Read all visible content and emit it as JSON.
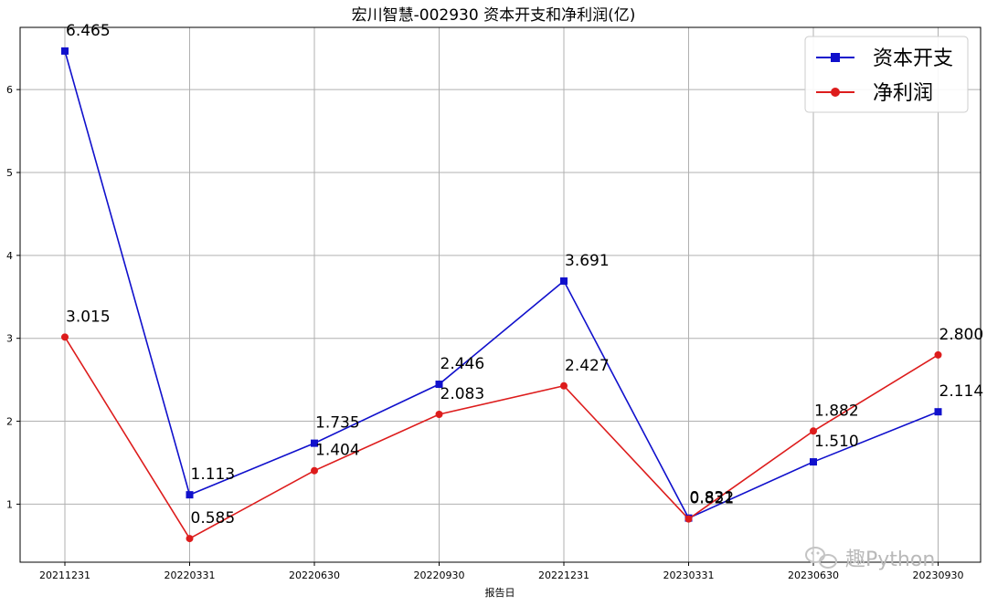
{
  "chart_data": {
    "type": "line",
    "title": "宏川智慧-002930 资本开支和净利润(亿)",
    "xlabel": "报告日",
    "ylabel": "",
    "categories": [
      "20211231",
      "20220331",
      "20220630",
      "20220930",
      "20221231",
      "20230331",
      "20230630",
      "20230930"
    ],
    "ylim": [
      0.3,
      6.75
    ],
    "yticks": [
      1,
      2,
      3,
      4,
      5,
      6
    ],
    "grid": true,
    "legend_position": "top-right",
    "series": [
      {
        "name": "资本开支",
        "color": "#1010cc",
        "marker": "square",
        "values": [
          6.465,
          1.113,
          1.735,
          2.446,
          3.691,
          0.832,
          1.51,
          2.114
        ],
        "labels": [
          "6.465",
          "1.113",
          "1.735",
          "2.446",
          "3.691",
          "0.832",
          "1.510",
          "2.114"
        ]
      },
      {
        "name": "净利润",
        "color": "#dd1c1c",
        "marker": "circle",
        "values": [
          3.015,
          0.585,
          1.404,
          2.083,
          2.427,
          0.821,
          1.882,
          2.8
        ],
        "labels": [
          "3.015",
          "0.585",
          "1.404",
          "2.083",
          "2.427",
          "0.821",
          "1.882",
          "2.800"
        ]
      }
    ]
  },
  "watermark": {
    "icon": "wechat-icon",
    "text": "趣Python"
  }
}
